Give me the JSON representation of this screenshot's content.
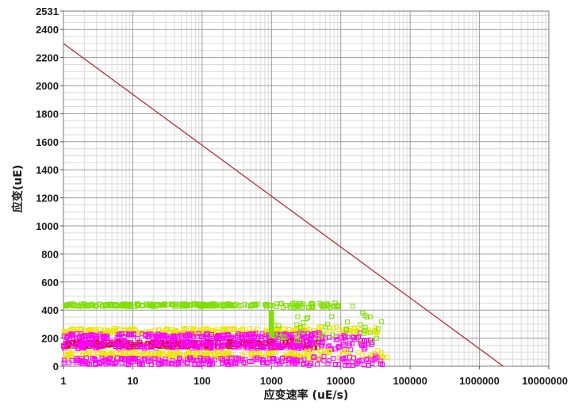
{
  "chart_data": {
    "type": "scatter",
    "xlabel": "应变速率 (uE/s)",
    "ylabel": "应变(uE)",
    "xscale": "log",
    "xlim": [
      1,
      10000000
    ],
    "ylim": [
      0,
      2531
    ],
    "grid": true,
    "x_ticks": [
      "1",
      "10",
      "100",
      "1000",
      "10000",
      "100000",
      "1000000",
      "10000000"
    ],
    "y_ticks": [
      "0",
      "200",
      "400",
      "600",
      "800",
      "1000",
      "1200",
      "1400",
      "1600",
      "1800",
      "2000",
      "2200",
      "2400",
      "2531"
    ],
    "line": {
      "color": "#b22222",
      "x": [
        1,
        2200000
      ],
      "y": [
        2300,
        0
      ]
    },
    "scatter_bands": [
      {
        "color": "#7fe000",
        "y_center": 435,
        "y_spread": 10,
        "x_min": 1,
        "x_max": 10000,
        "dense_to": 1000
      },
      {
        "color": "#e8e800",
        "y_center": 250,
        "y_spread": 22,
        "x_min": 1,
        "x_max": 40000,
        "dense_to": 3000
      },
      {
        "color": "#ff00ff",
        "y_center": 215,
        "y_spread": 18,
        "x_min": 1,
        "x_max": 20000,
        "dense_to": 2000
      },
      {
        "color": "#cc0000",
        "y_center": 155,
        "y_spread": 18,
        "x_min": 1,
        "x_max": 5000,
        "dense_to": 800
      },
      {
        "color": "#ff00ff",
        "y_center": 150,
        "y_spread": 25,
        "x_min": 1,
        "x_max": 30000,
        "dense_to": 3000
      },
      {
        "color": "#e8e800",
        "y_center": 80,
        "y_spread": 20,
        "x_min": 1,
        "x_max": 50000,
        "dense_to": 3000
      },
      {
        "color": "#ff00ff",
        "y_center": 35,
        "y_spread": 25,
        "x_min": 1,
        "x_max": 40000,
        "dense_to": 3000
      },
      {
        "color": "#7fe000",
        "y_center": 300,
        "y_spread": 80,
        "x_min": 1000,
        "x_max": 40000,
        "dense_to": 1000
      }
    ]
  }
}
